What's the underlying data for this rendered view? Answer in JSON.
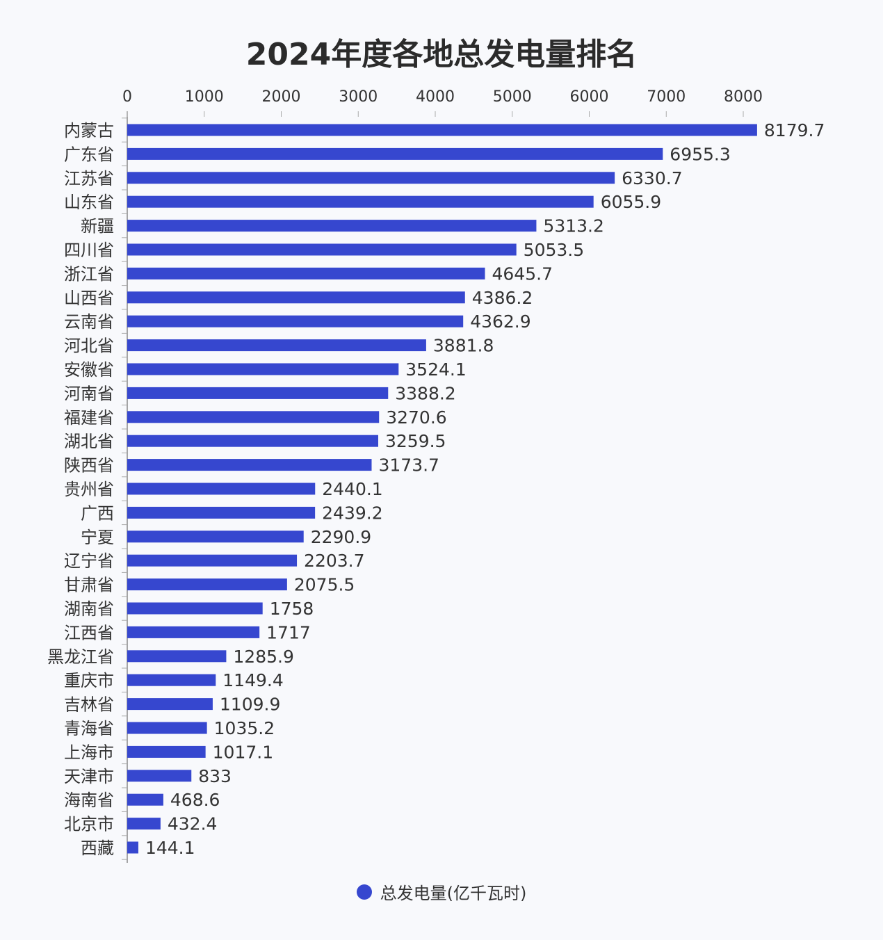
{
  "chart_data": {
    "type": "bar",
    "orientation": "horizontal",
    "title": "2024年度各地总发电量排名",
    "xlim": [
      0,
      8000
    ],
    "xticks": [
      0,
      1000,
      2000,
      3000,
      4000,
      5000,
      6000,
      7000,
      8000
    ],
    "xaxis_position": "top",
    "grid": false,
    "legend_placement": "bottom-center",
    "bar_color": "#3647cf",
    "categories": [
      "内蒙古",
      "广东省",
      "江苏省",
      "山东省",
      "新疆",
      "四川省",
      "浙江省",
      "山西省",
      "云南省",
      "河北省",
      "安徽省",
      "河南省",
      "福建省",
      "湖北省",
      "陕西省",
      "贵州省",
      "广西",
      "宁夏",
      "辽宁省",
      "甘肃省",
      "湖南省",
      "江西省",
      "黑龙江省",
      "重庆市",
      "吉林省",
      "青海省",
      "上海市",
      "天津市",
      "海南省",
      "北京市",
      "西藏"
    ],
    "series": [
      {
        "name": "总发电量(亿千瓦时)",
        "values": [
          "8179.7",
          "6955.3",
          "6330.7",
          "6055.9",
          "5313.2",
          "5053.5",
          "4645.7",
          "4386.2",
          "4362.9",
          "3881.8",
          "3524.1",
          "3388.2",
          "3270.6",
          "3259.5",
          "3173.7",
          "2440.1",
          "2439.2",
          "2290.9",
          "2203.7",
          "2075.5",
          "1758",
          "1717",
          "1285.9",
          "1149.4",
          "1109.9",
          "1035.2",
          "1017.1",
          "833",
          "468.6",
          "432.4",
          "144.1"
        ]
      }
    ]
  }
}
